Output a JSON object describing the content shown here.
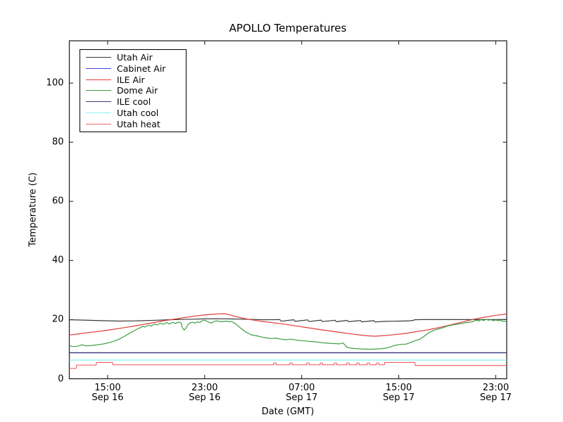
{
  "figure": {
    "background": "#ffffff"
  },
  "chart_data": {
    "type": "line",
    "title": "APOLLO Temperatures",
    "xlabel": "Date (GMT)",
    "ylabel": "Temperature (C)",
    "x_unit": "hours since Sep 16 00:00 GMT",
    "xlim_hours": [
      11.84,
      47.9
    ],
    "ylim": [
      0,
      114.3
    ],
    "grid": false,
    "frame_color": "#262626",
    "legend_position": "upper left",
    "x_ticks": [
      {
        "hour": 15,
        "time": "15:00",
        "date": "Sep 16"
      },
      {
        "hour": 23,
        "time": "23:00",
        "date": "Sep 16"
      },
      {
        "hour": 31,
        "time": "07:00",
        "date": "Sep 17"
      },
      {
        "hour": 39,
        "time": "15:00",
        "date": "Sep 17"
      },
      {
        "hour": 47,
        "time": "23:00",
        "date": "Sep 17"
      }
    ],
    "y_ticks": [
      0,
      20,
      40,
      60,
      80,
      100
    ],
    "series": [
      {
        "name": "Utah Air",
        "color": "#3a3a3a",
        "points": [
          [
            11.84,
            19.95
          ],
          [
            13.0,
            19.85
          ],
          [
            14.0,
            19.72
          ],
          [
            15.0,
            19.6
          ],
          [
            16.0,
            19.5
          ],
          [
            17.0,
            19.55
          ],
          [
            18.0,
            19.65
          ],
          [
            19.0,
            19.8
          ],
          [
            20.0,
            19.95
          ],
          [
            21.0,
            20.05
          ],
          [
            22.0,
            20.15
          ],
          [
            23.0,
            20.25
          ],
          [
            24.0,
            20.3
          ],
          [
            25.0,
            20.25
          ],
          [
            26.0,
            20.15
          ],
          [
            27.0,
            20.05
          ],
          [
            28.0,
            19.95
          ],
          [
            29.2,
            20.0
          ],
          [
            29.3,
            19.45
          ],
          [
            30.35,
            19.95
          ],
          [
            30.45,
            19.4
          ],
          [
            31.5,
            19.9
          ],
          [
            31.6,
            19.35
          ],
          [
            32.6,
            19.85
          ],
          [
            32.7,
            19.35
          ],
          [
            33.75,
            19.8
          ],
          [
            33.85,
            19.3
          ],
          [
            34.75,
            19.75
          ],
          [
            34.85,
            19.3
          ],
          [
            35.85,
            19.7
          ],
          [
            35.95,
            19.25
          ],
          [
            36.95,
            19.65
          ],
          [
            37.05,
            19.2
          ],
          [
            37.8,
            19.4
          ],
          [
            38.5,
            19.45
          ],
          [
            39.2,
            19.5
          ],
          [
            39.9,
            19.6
          ],
          [
            40.2,
            19.75
          ],
          [
            40.3,
            19.95
          ],
          [
            41.0,
            20.0
          ],
          [
            43.0,
            20.0
          ],
          [
            45.0,
            20.0
          ],
          [
            47.0,
            20.0
          ],
          [
            47.9,
            20.05
          ]
        ]
      },
      {
        "name": "Cabinet Air",
        "color": "#4646d8",
        "points": [
          [
            11.84,
            8.8
          ],
          [
            47.9,
            8.8
          ]
        ]
      },
      {
        "name": "ILE Air",
        "color": "#e23b3b",
        "points": [
          [
            11.84,
            14.8
          ],
          [
            12.5,
            15.1
          ],
          [
            13.2,
            15.5
          ],
          [
            14.0,
            15.9
          ],
          [
            14.8,
            16.3
          ],
          [
            15.6,
            16.8
          ],
          [
            16.4,
            17.3
          ],
          [
            17.2,
            17.85
          ],
          [
            18.0,
            18.4
          ],
          [
            18.8,
            19.0
          ],
          [
            19.6,
            19.6
          ],
          [
            20.4,
            20.1
          ],
          [
            21.2,
            20.6
          ],
          [
            22.0,
            21.1
          ],
          [
            22.8,
            21.5
          ],
          [
            23.6,
            21.8
          ],
          [
            24.2,
            21.95
          ],
          [
            24.6,
            22.0
          ],
          [
            25.0,
            21.7
          ],
          [
            25.4,
            21.2
          ],
          [
            25.9,
            20.7
          ],
          [
            26.5,
            20.2
          ],
          [
            27.1,
            19.8
          ],
          [
            27.9,
            19.3
          ],
          [
            28.7,
            18.9
          ],
          [
            29.5,
            18.5
          ],
          [
            30.3,
            18.0
          ],
          [
            31.1,
            17.5
          ],
          [
            31.9,
            17.0
          ],
          [
            32.7,
            16.5
          ],
          [
            33.5,
            16.05
          ],
          [
            34.3,
            15.6
          ],
          [
            35.1,
            15.15
          ],
          [
            35.9,
            14.75
          ],
          [
            36.5,
            14.5
          ],
          [
            37.0,
            14.4
          ],
          [
            37.5,
            14.5
          ],
          [
            38.1,
            14.7
          ],
          [
            38.7,
            14.95
          ],
          [
            39.3,
            15.2
          ],
          [
            39.9,
            15.55
          ],
          [
            40.5,
            15.95
          ],
          [
            41.1,
            16.35
          ],
          [
            41.7,
            16.8
          ],
          [
            42.3,
            17.3
          ],
          [
            42.9,
            17.85
          ],
          [
            43.5,
            18.45
          ],
          [
            44.1,
            19.05
          ],
          [
            44.7,
            19.65
          ],
          [
            45.3,
            20.2
          ],
          [
            45.9,
            20.7
          ],
          [
            46.5,
            21.1
          ],
          [
            47.0,
            21.45
          ],
          [
            47.5,
            21.7
          ],
          [
            47.9,
            21.9
          ]
        ]
      },
      {
        "name": "Dome Air",
        "color": "#3f9e44",
        "points": [
          [
            11.84,
            11.2
          ],
          [
            12.1,
            10.9
          ],
          [
            12.5,
            11.0
          ],
          [
            12.9,
            11.5
          ],
          [
            13.2,
            11.1
          ],
          [
            13.6,
            11.2
          ],
          [
            14.0,
            11.4
          ],
          [
            14.4,
            11.6
          ],
          [
            14.8,
            11.9
          ],
          [
            15.2,
            12.3
          ],
          [
            15.6,
            12.8
          ],
          [
            16.0,
            13.5
          ],
          [
            16.4,
            14.4
          ],
          [
            16.8,
            15.4
          ],
          [
            17.2,
            16.3
          ],
          [
            17.6,
            17.1
          ],
          [
            17.9,
            17.7
          ],
          [
            18.1,
            17.5
          ],
          [
            18.35,
            18.1
          ],
          [
            18.6,
            17.8
          ],
          [
            18.85,
            18.5
          ],
          [
            19.1,
            18.2
          ],
          [
            19.35,
            18.8
          ],
          [
            19.6,
            18.4
          ],
          [
            19.85,
            19.0
          ],
          [
            20.1,
            18.5
          ],
          [
            20.35,
            19.1
          ],
          [
            20.6,
            18.7
          ],
          [
            20.85,
            19.2
          ],
          [
            21.05,
            18.9
          ],
          [
            21.15,
            17.3
          ],
          [
            21.3,
            16.5
          ],
          [
            21.45,
            17.0
          ],
          [
            21.6,
            18.2
          ],
          [
            21.8,
            18.9
          ],
          [
            22.0,
            19.1
          ],
          [
            22.2,
            18.8
          ],
          [
            22.4,
            19.3
          ],
          [
            22.6,
            19.0
          ],
          [
            22.8,
            19.6
          ],
          [
            23.0,
            19.8
          ],
          [
            23.2,
            19.4
          ],
          [
            23.4,
            19.0
          ],
          [
            23.6,
            18.9
          ],
          [
            23.8,
            19.4
          ],
          [
            24.0,
            19.6
          ],
          [
            24.2,
            19.4
          ],
          [
            24.5,
            19.3
          ],
          [
            24.8,
            19.5
          ],
          [
            25.0,
            19.3
          ],
          [
            25.26,
            19.3
          ],
          [
            25.6,
            18.4
          ],
          [
            26.0,
            17.0
          ],
          [
            26.4,
            15.8
          ],
          [
            26.8,
            14.9
          ],
          [
            27.3,
            14.5
          ],
          [
            27.7,
            14.1
          ],
          [
            28.1,
            13.8
          ],
          [
            28.5,
            13.6
          ],
          [
            28.9,
            13.7
          ],
          [
            29.3,
            13.4
          ],
          [
            29.7,
            13.2
          ],
          [
            30.1,
            13.4
          ],
          [
            30.5,
            13.1
          ],
          [
            30.9,
            12.9
          ],
          [
            31.3,
            12.8
          ],
          [
            31.7,
            12.6
          ],
          [
            32.1,
            12.5
          ],
          [
            32.5,
            12.3
          ],
          [
            32.9,
            12.1
          ],
          [
            33.3,
            12.0
          ],
          [
            33.7,
            11.9
          ],
          [
            34.1,
            11.8
          ],
          [
            34.4,
            12.1
          ],
          [
            34.55,
            11.5
          ],
          [
            34.7,
            10.7
          ],
          [
            35.0,
            10.4
          ],
          [
            35.4,
            10.2
          ],
          [
            35.8,
            10.1
          ],
          [
            36.2,
            10.0
          ],
          [
            36.6,
            10.0
          ],
          [
            36.9,
            10.0
          ],
          [
            37.3,
            10.1
          ],
          [
            37.7,
            10.2
          ],
          [
            38.1,
            10.5
          ],
          [
            38.6,
            11.2
          ],
          [
            39.1,
            11.6
          ],
          [
            39.6,
            11.7
          ],
          [
            40.0,
            12.3
          ],
          [
            40.3,
            12.8
          ],
          [
            40.7,
            13.3
          ],
          [
            41.1,
            14.4
          ],
          [
            41.5,
            15.6
          ],
          [
            41.9,
            16.4
          ],
          [
            42.3,
            16.9
          ],
          [
            42.6,
            17.2
          ],
          [
            43.0,
            17.8
          ],
          [
            43.4,
            18.2
          ],
          [
            43.8,
            18.4
          ],
          [
            44.2,
            18.7
          ],
          [
            44.6,
            19.0
          ],
          [
            45.0,
            19.2
          ],
          [
            45.4,
            19.8
          ],
          [
            45.6,
            19.5
          ],
          [
            45.8,
            20.0
          ],
          [
            46.0,
            19.7
          ],
          [
            46.2,
            20.1
          ],
          [
            46.4,
            19.8
          ],
          [
            46.6,
            20.0
          ],
          [
            46.8,
            19.6
          ],
          [
            47.0,
            19.9
          ],
          [
            47.2,
            19.6
          ],
          [
            47.4,
            19.8
          ],
          [
            47.6,
            19.4
          ],
          [
            47.9,
            19.4
          ]
        ]
      },
      {
        "name": "ILE cool",
        "color": "#3c3c78",
        "points": [
          [
            11.84,
            8.8
          ],
          [
            47.9,
            8.8
          ]
        ]
      },
      {
        "name": "Utah cool",
        "color": "#86f0ef",
        "points": [
          [
            11.84,
            6.3
          ],
          [
            47.9,
            6.3
          ]
        ]
      },
      {
        "name": "Utah heat",
        "color": "#f1686b",
        "points": [
          [
            11.84,
            3.5
          ],
          [
            12.4,
            3.5
          ],
          [
            12.43,
            4.6
          ],
          [
            14.05,
            4.6
          ],
          [
            14.08,
            5.5
          ],
          [
            15.4,
            5.5
          ],
          [
            15.43,
            4.7
          ],
          [
            28.6,
            4.7
          ],
          [
            28.68,
            4.7
          ],
          [
            28.7,
            5.3
          ],
          [
            28.88,
            5.3
          ],
          [
            28.9,
            4.7
          ],
          [
            30.01,
            4.7
          ],
          [
            30.03,
            5.3
          ],
          [
            30.21,
            5.3
          ],
          [
            30.23,
            4.7
          ],
          [
            31.4,
            4.7
          ],
          [
            31.42,
            5.3
          ],
          [
            31.6,
            5.3
          ],
          [
            31.62,
            4.7
          ],
          [
            32.51,
            4.7
          ],
          [
            32.53,
            5.3
          ],
          [
            32.71,
            5.3
          ],
          [
            32.73,
            4.7
          ],
          [
            33.67,
            4.7
          ],
          [
            33.69,
            5.3
          ],
          [
            33.87,
            5.3
          ],
          [
            33.89,
            4.7
          ],
          [
            34.71,
            4.7
          ],
          [
            34.73,
            5.3
          ],
          [
            34.91,
            5.3
          ],
          [
            34.93,
            4.7
          ],
          [
            35.52,
            4.7
          ],
          [
            35.54,
            5.3
          ],
          [
            35.72,
            5.3
          ],
          [
            35.74,
            4.7
          ],
          [
            36.39,
            4.7
          ],
          [
            36.41,
            5.3
          ],
          [
            36.59,
            5.3
          ],
          [
            36.61,
            4.7
          ],
          [
            37.14,
            4.7
          ],
          [
            37.16,
            5.3
          ],
          [
            37.34,
            5.3
          ],
          [
            37.36,
            4.7
          ],
          [
            37.82,
            4.7
          ],
          [
            37.84,
            5.5
          ],
          [
            40.33,
            5.5
          ],
          [
            40.36,
            4.5
          ],
          [
            47.9,
            4.5
          ]
        ]
      }
    ]
  }
}
